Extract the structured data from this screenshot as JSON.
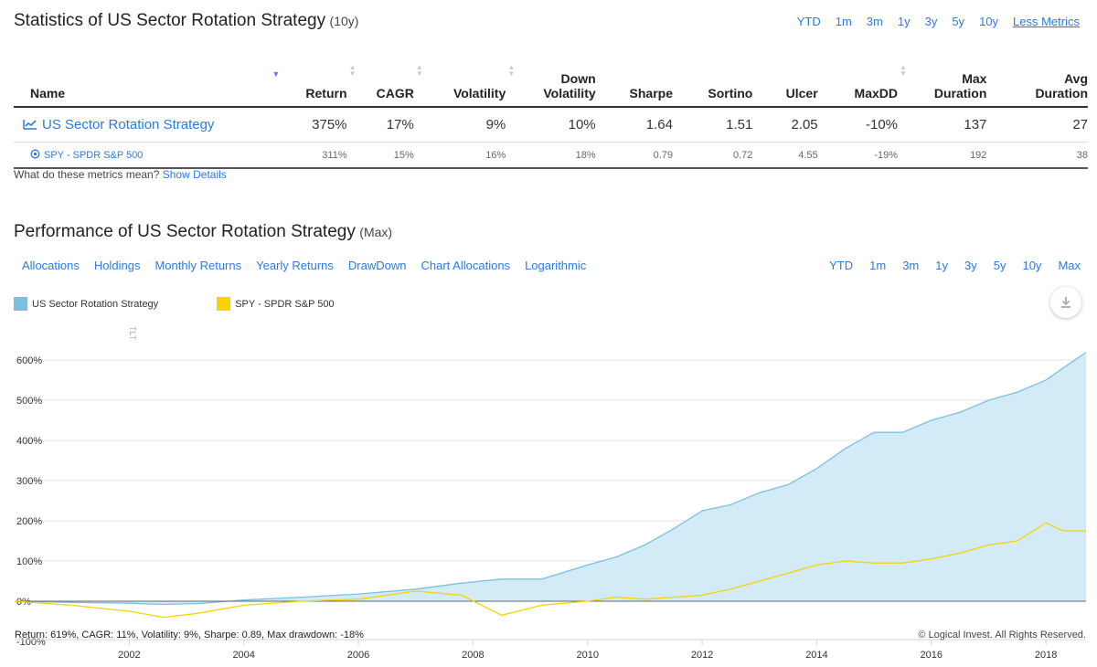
{
  "stats": {
    "title": "Statistics of US Sector Rotation Strategy",
    "subtitle": "(10y)",
    "ranges": [
      "YTD",
      "1m",
      "3m",
      "1y",
      "3y",
      "5y",
      "10y"
    ],
    "less_metrics": "Less Metrics",
    "columns": {
      "name": "Name",
      "return": "Return",
      "cagr": "CAGR",
      "volatility": "Volatility",
      "down1": "Down",
      "down2": "Volatility",
      "sharpe": "Sharpe",
      "sortino": "Sortino",
      "ulcer": "Ulcer",
      "maxdd": "MaxDD",
      "maxdur1": "Max",
      "maxdur2": "Duration",
      "avgdur1": "Avg",
      "avgdur2": "Duration"
    },
    "rows": [
      {
        "name": "US Sector Rotation Strategy",
        "return": "375%",
        "cagr": "17%",
        "volatility": "9%",
        "down": "10%",
        "sharpe": "1.64",
        "sortino": "1.51",
        "ulcer": "2.05",
        "maxdd": "-10%",
        "maxdur": "137",
        "avgdur": "27"
      },
      {
        "name": "SPY - SPDR S&P 500",
        "return": "311%",
        "cagr": "15%",
        "volatility": "16%",
        "down": "18%",
        "sharpe": "0.79",
        "sortino": "0.72",
        "ulcer": "4.55",
        "maxdd": "-19%",
        "maxdur": "192",
        "avgdur": "38"
      }
    ],
    "note": "What do these metrics mean?",
    "show_details": "Show Details"
  },
  "performance": {
    "title": "Performance of US Sector Rotation Strategy",
    "subtitle": "(Max)",
    "tabs": [
      "Allocations",
      "Holdings",
      "Monthly Returns",
      "Yearly Returns",
      "DrawDown",
      "Chart Allocations",
      "Logarithmic"
    ],
    "ranges": [
      "YTD",
      "1m",
      "3m",
      "1y",
      "3y",
      "5y",
      "10y",
      "Max"
    ],
    "legend": [
      "US Sector Rotation Strategy",
      "SPY - SPDR S&P 500"
    ],
    "flag": "TLT",
    "footer_left": "Return: 619%, CAGR: 11%, Volatility: 9%, Sharpe: 0.89, Max drawdown: -18%",
    "footer_right": "© Logical Invest. All Rights Reserved."
  },
  "chart_data": {
    "type": "area",
    "x": [
      2000.0,
      2001.0,
      2002.0,
      2002.6,
      2003.2,
      2004.0,
      2005.0,
      2006.0,
      2007.0,
      2007.8,
      2008.5,
      2009.2,
      2010.0,
      2010.5,
      2011.0,
      2011.5,
      2012.0,
      2012.5,
      2013.0,
      2013.5,
      2014.0,
      2014.5,
      2015.0,
      2015.5,
      2016.0,
      2016.5,
      2017.0,
      2017.5,
      2018.0,
      2018.3,
      2018.7
    ],
    "series": [
      {
        "name": "US Sector Rotation Strategy",
        "color": "#7cc0e0",
        "values": [
          0,
          -3,
          -5,
          -8,
          -6,
          3,
          10,
          18,
          30,
          45,
          55,
          55,
          90,
          110,
          140,
          180,
          225,
          240,
          270,
          290,
          330,
          380,
          420,
          420,
          450,
          470,
          500,
          520,
          550,
          580,
          619
        ]
      },
      {
        "name": "SPY - SPDR S&P 500",
        "color": "#f5d400",
        "values": [
          0,
          -10,
          -25,
          -40,
          -30,
          -10,
          0,
          5,
          25,
          15,
          -35,
          -10,
          0,
          10,
          5,
          10,
          15,
          30,
          50,
          70,
          90,
          100,
          95,
          95,
          105,
          120,
          140,
          150,
          195,
          175,
          175
        ]
      }
    ],
    "ylim": [
      -100,
      600
    ],
    "yticks": [
      "-100%",
      "0%",
      "100%",
      "200%",
      "300%",
      "400%",
      "500%",
      "600%"
    ],
    "ytick_values": [
      -100,
      0,
      100,
      200,
      300,
      400,
      500,
      600
    ],
    "xticks": [
      "2002",
      "2004",
      "2006",
      "2008",
      "2010",
      "2012",
      "2014",
      "2016",
      "2018"
    ],
    "xtick_values": [
      2002,
      2004,
      2006,
      2008,
      2010,
      2012,
      2014,
      2016,
      2018
    ],
    "grid": true
  }
}
